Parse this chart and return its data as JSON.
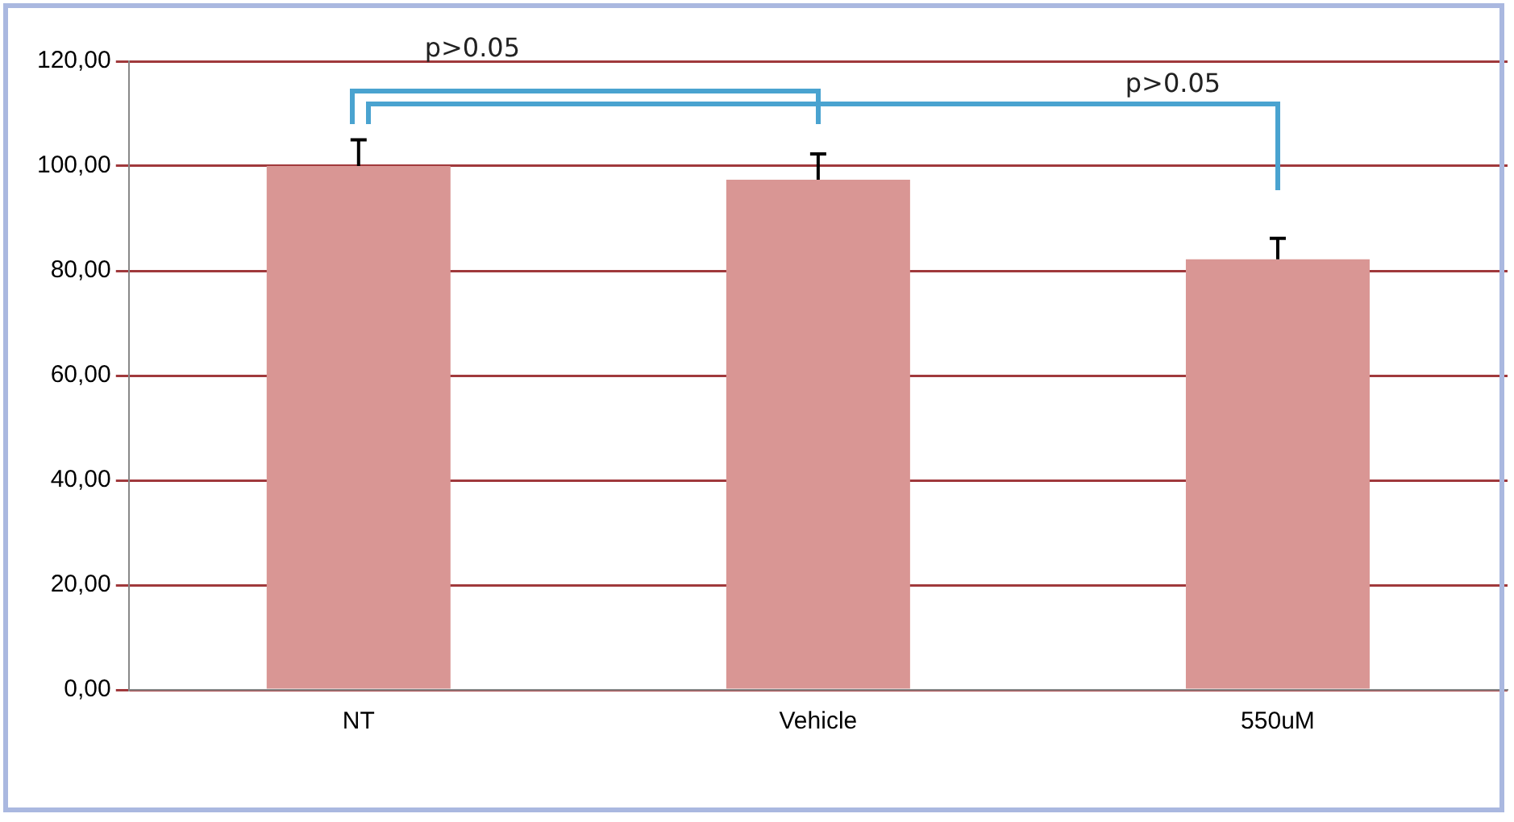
{
  "chart_data": {
    "type": "bar",
    "categories": [
      "NT",
      "Vehicle",
      "550uM"
    ],
    "values": [
      100,
      97.4,
      82.2
    ],
    "color": "#d99694",
    "errors": [
      [
        100,
        105
      ],
      [
        97.4,
        102.3
      ],
      [
        82.2,
        86.2
      ]
    ],
    "ylim": [
      0,
      120
    ],
    "yticks": [
      {
        "value": 0,
        "label": "0,00"
      },
      {
        "value": 20,
        "label": "20,00"
      },
      {
        "value": 40,
        "label": "40,00"
      },
      {
        "value": 60,
        "label": "60,00"
      },
      {
        "value": 80,
        "label": "80,00"
      },
      {
        "value": 100,
        "label": "100,00"
      },
      {
        "value": 120,
        "label": "120,00"
      }
    ],
    "grid": "y",
    "legend": false,
    "annotations": [
      "p>0.05",
      "p>0.05"
    ]
  }
}
